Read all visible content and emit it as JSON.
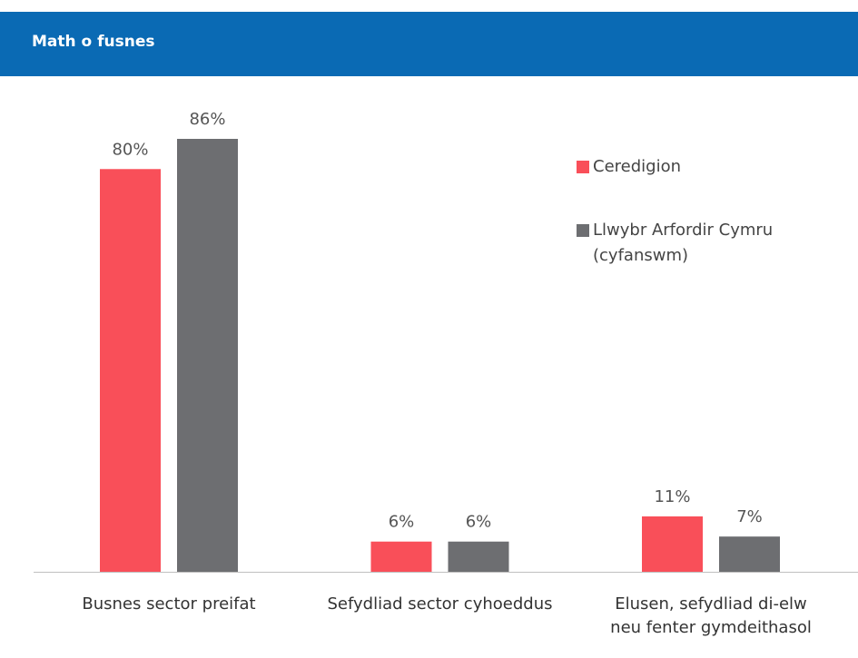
{
  "chart_data": {
    "type": "bar",
    "title": "Math o fusnes",
    "categories": [
      "Busnes sector preifat",
      "Sefydliad sector cyhoeddus",
      "Elusen, sefydliad di-elw neu fenter gymdeithasol"
    ],
    "series": [
      {
        "name": "Ceredigion",
        "color": "#f94f59",
        "values": [
          80,
          6,
          11
        ],
        "value_labels": [
          "80%",
          "6%",
          "11%"
        ]
      },
      {
        "name": "Llwybr Arfordir Cymru (cyfanswm)",
        "color": "#6d6e71",
        "values": [
          86,
          6,
          7
        ],
        "value_labels": [
          "86%",
          "6%",
          "7%"
        ]
      }
    ],
    "legend": "right"
  }
}
